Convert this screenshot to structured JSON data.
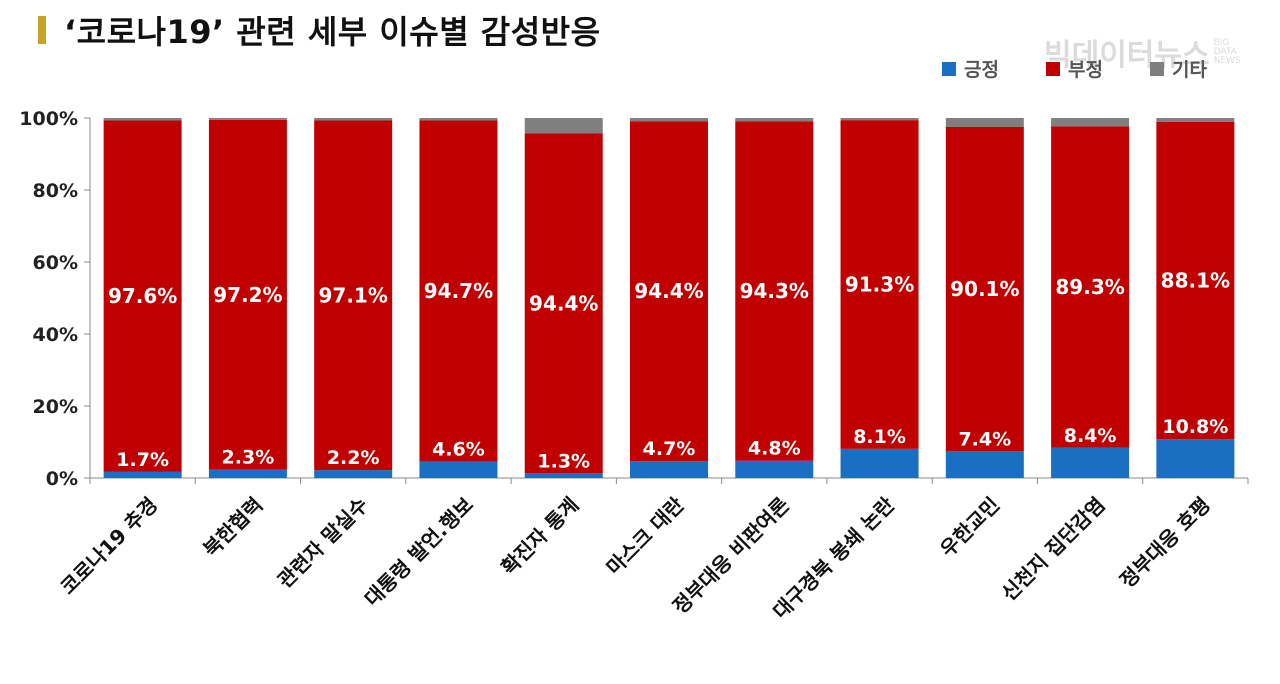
{
  "title": "‘코로나19’ 관련 세부 이슈별 감성반응",
  "watermark": {
    "main": "빅데이터뉴스",
    "sub": "BIG DATA NEWS"
  },
  "colors": {
    "positive": "#1b6fc2",
    "negative": "#c00000",
    "other": "#7f7f7f",
    "title_bar": "#c9a227"
  },
  "chart_data": {
    "type": "bar",
    "stacked": true,
    "categories": [
      "코로나19 추경",
      "북한협력",
      "관련자 말실수",
      "대통령 발언.행보",
      "확진자 통계",
      "마스크 대란",
      "정부대응 비판여론",
      "대구경북 봉쇄 논란",
      "우한교민",
      "신천지 집단감염",
      "정부대응 호평"
    ],
    "series": [
      {
        "name": "긍정",
        "values": [
          1.7,
          2.3,
          2.2,
          4.6,
          1.3,
          4.7,
          4.8,
          8.1,
          7.4,
          8.4,
          10.8
        ],
        "labels": [
          "1.7%",
          "2.3%",
          "2.2%",
          "4.6%",
          "1.3%",
          "4.7%",
          "4.8%",
          "8.1%",
          "7.4%",
          "8.4%",
          "10.8%"
        ]
      },
      {
        "name": "부정",
        "values": [
          97.6,
          97.2,
          97.1,
          94.7,
          94.4,
          94.4,
          94.3,
          91.3,
          90.1,
          89.3,
          88.1
        ],
        "labels": [
          "97.6%",
          "97.2%",
          "97.1%",
          "94.7%",
          "94.4%",
          "94.4%",
          "94.3%",
          "91.3%",
          "90.1%",
          "89.3%",
          "88.1%"
        ]
      },
      {
        "name": "기타",
        "values": [
          0.7,
          0.5,
          0.7,
          0.7,
          4.3,
          0.9,
          0.9,
          0.6,
          2.5,
          2.3,
          1.1
        ]
      }
    ],
    "yticks": [
      "0%",
      "20%",
      "40%",
      "60%",
      "80%",
      "100%"
    ],
    "ylim": [
      0,
      100
    ],
    "legend": "top-right",
    "grid": false
  }
}
